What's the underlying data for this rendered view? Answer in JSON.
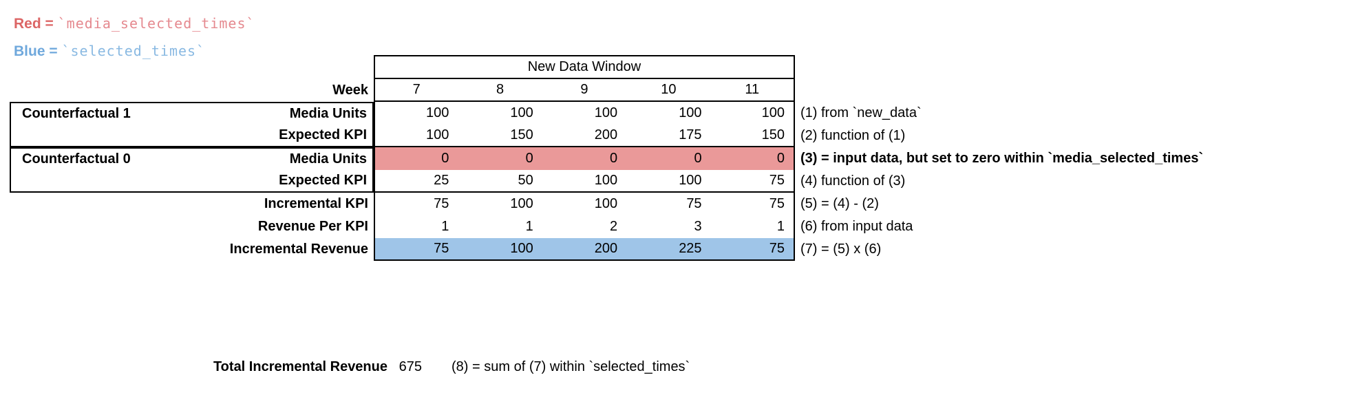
{
  "legend": {
    "red_label": "Red =",
    "red_code": "`media_selected_times`",
    "blue_label": "Blue =",
    "blue_code": "`selected_times`",
    "colors": {
      "red_label": "#dc6666",
      "red_code": "#e5898f",
      "blue_label": "#6fa8dc",
      "blue_code": "#89b9e2"
    }
  },
  "table": {
    "header": "New Data Window",
    "week_label": "Week",
    "weeks": [
      "7",
      "8",
      "9",
      "10",
      "11"
    ],
    "groups": {
      "cf1": "Counterfactual 1",
      "cf0": "Counterfactual 0"
    },
    "rows": [
      {
        "label": "Media Units",
        "values": [
          "100",
          "100",
          "100",
          "100",
          "100"
        ],
        "highlight": "none"
      },
      {
        "label": "Expected KPI",
        "values": [
          "100",
          "150",
          "200",
          "175",
          "150"
        ],
        "highlight": "none"
      },
      {
        "label": "Media Units",
        "values": [
          "0",
          "0",
          "0",
          "0",
          "0"
        ],
        "highlight": "red"
      },
      {
        "label": "Expected KPI",
        "values": [
          "25",
          "50",
          "100",
          "100",
          "75"
        ],
        "highlight": "none"
      },
      {
        "label": "Incremental KPI",
        "values": [
          "75",
          "100",
          "100",
          "75",
          "75"
        ],
        "highlight": "none"
      },
      {
        "label": "Revenue Per KPI",
        "values": [
          "1",
          "1",
          "2",
          "3",
          "1"
        ],
        "highlight": "none"
      },
      {
        "label": "Incremental Revenue",
        "values": [
          "75",
          "100",
          "200",
          "225",
          "75"
        ],
        "highlight": "blue"
      }
    ],
    "highlight_colors": {
      "red": "#ea9999",
      "blue": "#9fc5e8"
    }
  },
  "annotations": [
    "(1) from `new_data`",
    "(2) function of (1)",
    "(3) = input data, but set to zero within `media_selected_times`",
    "(4) function of (3)",
    "(5) = (4) - (2)",
    "(6) from input data",
    "(7) = (5) x (6)"
  ],
  "total": {
    "label": "Total Incremental Revenue",
    "value": "675",
    "annotation": "(8) = sum of (7) within `selected_times`"
  }
}
